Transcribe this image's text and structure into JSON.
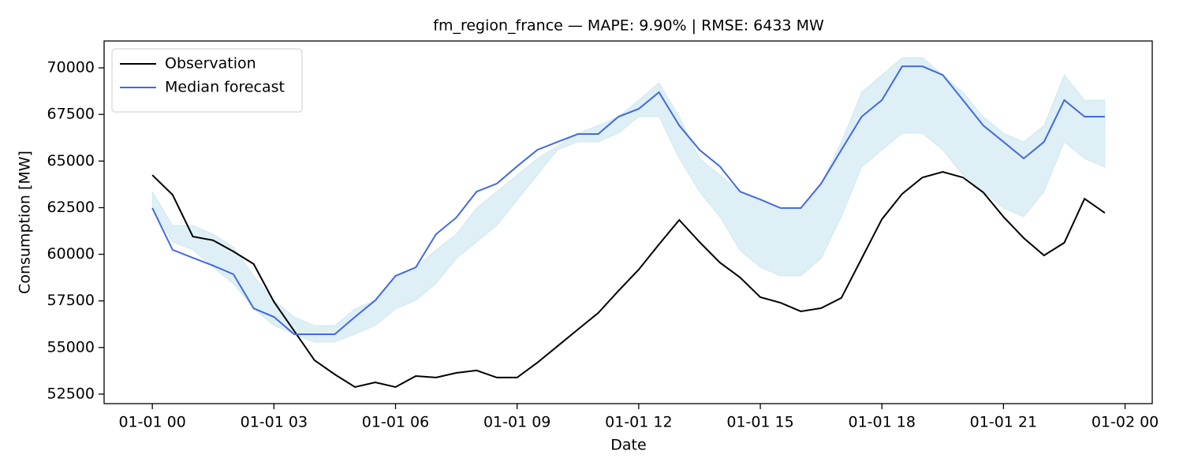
{
  "chart_data": {
    "type": "line",
    "title": "fm_region_france — MAPE: 9.90% | RMSE: 6433 MW",
    "xlabel": "Date",
    "ylabel": "Consumption [MW]",
    "x": [
      0,
      0.5,
      1,
      1.5,
      2,
      2.5,
      3,
      3.5,
      4,
      4.5,
      5,
      5.5,
      6,
      6.5,
      7,
      7.5,
      8,
      8.5,
      9,
      9.5,
      10,
      10.5,
      11,
      11.5,
      12,
      12.5,
      13,
      13.5,
      14,
      14.5,
      15,
      15.5,
      16,
      16.5,
      17,
      17.5,
      18,
      18.5,
      19,
      19.5,
      20,
      20.5,
      21,
      21.5,
      22,
      22.5,
      23,
      23.5
    ],
    "series": [
      {
        "name": "Observation",
        "color": "#000000",
        "values": [
          64250,
          63190,
          60950,
          60750,
          60150,
          59480,
          57450,
          55890,
          54320,
          53560,
          52880,
          53130,
          52880,
          53470,
          53390,
          53640,
          53770,
          53390,
          53390,
          54190,
          55080,
          55970,
          56850,
          58040,
          59180,
          60530,
          61840,
          60660,
          59560,
          58760,
          57700,
          57400,
          56940,
          57110,
          57660,
          59770,
          61880,
          63240,
          64120,
          64420,
          64120,
          63320,
          62010,
          60870,
          59940,
          60620,
          62980,
          62220
        ]
      },
      {
        "name": "Median forecast",
        "color": "#4169e1",
        "values": [
          62480,
          60240,
          59810,
          59390,
          58930,
          57100,
          56640,
          55710,
          55710,
          55710,
          56640,
          57530,
          58840,
          59300,
          61080,
          61970,
          63360,
          63790,
          64720,
          65600,
          66030,
          66450,
          66450,
          67380,
          67800,
          68690,
          66910,
          65600,
          64720,
          63360,
          62940,
          62480,
          62480,
          63790,
          65600,
          67380,
          68270,
          70080,
          70080,
          69620,
          68270,
          66910,
          66030,
          65140,
          66030,
          68270,
          67380,
          67380
        ]
      }
    ],
    "band": {
      "color": "#add8e6",
      "upper": [
        63360,
        61550,
        61550,
        61080,
        60400,
        58840,
        57530,
        56640,
        56180,
        56180,
        57070,
        57530,
        58840,
        59300,
        60240,
        61080,
        62480,
        63360,
        64250,
        65140,
        65820,
        66490,
        66910,
        67380,
        68270,
        69200,
        67380,
        65140,
        64250,
        63360,
        62940,
        62480,
        62480,
        63790,
        66030,
        68690,
        69620,
        70550,
        70550,
        69620,
        68690,
        67380,
        66490,
        66030,
        66910,
        69620,
        68270,
        68270
      ],
      "lower": [
        62480,
        60660,
        60240,
        59300,
        58420,
        57070,
        56180,
        55710,
        55290,
        55290,
        55710,
        56180,
        57070,
        57530,
        58420,
        59770,
        60660,
        61550,
        62900,
        64250,
        65600,
        66030,
        66030,
        66490,
        67380,
        67380,
        65140,
        63360,
        62010,
        60200,
        59300,
        58840,
        58840,
        59770,
        62010,
        64670,
        65600,
        66490,
        66490,
        65600,
        64250,
        63360,
        62480,
        62010,
        63360,
        66030,
        65140,
        64670
      ]
    },
    "xlim": [
      -1.19,
      24.67
    ],
    "ylim": [
      51990,
      71440
    ],
    "xticks": [
      {
        "value": 0,
        "label": "01-01 00"
      },
      {
        "value": 3,
        "label": "01-01 03"
      },
      {
        "value": 6,
        "label": "01-01 06"
      },
      {
        "value": 9,
        "label": "01-01 09"
      },
      {
        "value": 12,
        "label": "01-01 12"
      },
      {
        "value": 15,
        "label": "01-01 15"
      },
      {
        "value": 18,
        "label": "01-01 18"
      },
      {
        "value": 21,
        "label": "01-01 21"
      },
      {
        "value": 24,
        "label": "01-02 00"
      }
    ],
    "yticks": [
      52500,
      55000,
      57500,
      60000,
      62500,
      65000,
      67500,
      70000
    ],
    "legend": "upper left",
    "grid": false
  }
}
